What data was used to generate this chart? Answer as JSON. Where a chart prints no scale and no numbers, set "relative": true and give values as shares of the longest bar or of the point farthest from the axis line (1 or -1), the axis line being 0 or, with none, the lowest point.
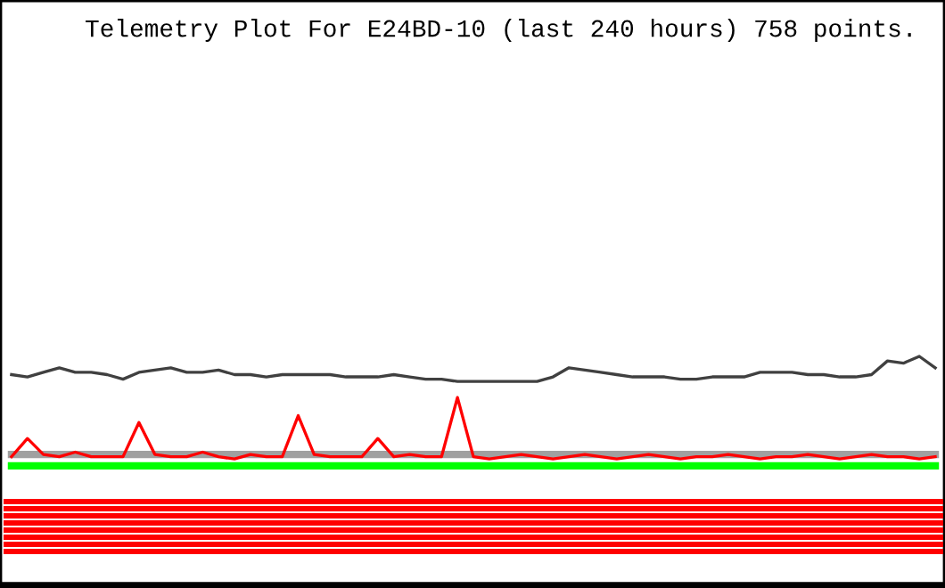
{
  "chart_data": {
    "type": "line",
    "title": "Telemetry Plot For E24BD-10 (last 240 hours) 758 points.",
    "relative": true,
    "tick_labels": false,
    "marker": "none",
    "categories": [
      null,
      null,
      null,
      null,
      null,
      null,
      null,
      null,
      null,
      null,
      null,
      null,
      null,
      null,
      null,
      null,
      null,
      null,
      null,
      null,
      null,
      null,
      null,
      null,
      null,
      null,
      null,
      null,
      null,
      null,
      null,
      null,
      null,
      null,
      null,
      null,
      null,
      null,
      null,
      null,
      null,
      null,
      null,
      null,
      null,
      null,
      null,
      null,
      null,
      null,
      null,
      null,
      null,
      null,
      null,
      null,
      null,
      null,
      null
    ],
    "series": [
      {
        "color": "#404040",
        "values": [
          0.92,
          0.91,
          0.93,
          0.95,
          0.93,
          0.93,
          0.92,
          0.9,
          0.93,
          0.94,
          0.95,
          0.93,
          0.93,
          0.94,
          0.92,
          0.92,
          0.91,
          0.92,
          0.92,
          0.92,
          0.92,
          0.91,
          0.91,
          0.91,
          0.92,
          0.91,
          0.9,
          0.9,
          0.89,
          0.89,
          0.89,
          0.89,
          0.89,
          0.89,
          0.91,
          0.95,
          0.94,
          0.93,
          0.92,
          0.91,
          0.91,
          0.91,
          0.9,
          0.9,
          0.91,
          0.91,
          0.91,
          0.93,
          0.93,
          0.93,
          0.92,
          0.92,
          0.91,
          0.91,
          0.92,
          0.98,
          0.97,
          1.0,
          0.95
        ]
      },
      {
        "color": "#ff0000",
        "values": [
          0.56,
          0.64,
          0.57,
          0.56,
          0.58,
          0.56,
          0.56,
          0.56,
          0.71,
          0.57,
          0.56,
          0.56,
          0.58,
          0.56,
          0.55,
          0.57,
          0.56,
          0.56,
          0.74,
          0.57,
          0.56,
          0.56,
          0.56,
          0.64,
          0.56,
          0.57,
          0.56,
          0.56,
          0.82,
          0.56,
          0.55,
          0.56,
          0.57,
          0.56,
          0.55,
          0.56,
          0.57,
          0.56,
          0.55,
          0.56,
          0.57,
          0.56,
          0.55,
          0.56,
          0.56,
          0.57,
          0.56,
          0.55,
          0.56,
          0.56,
          0.57,
          0.56,
          0.55,
          0.56,
          0.57,
          0.56,
          0.56,
          0.55,
          0.56
        ]
      },
      {
        "type": "line",
        "marker": "none",
        "color": "#a0a0a0",
        "values": [
          0.57,
          0.57,
          0.57,
          0.57,
          0.57,
          0.57,
          0.57,
          0.57,
          0.57,
          0.57,
          0.57,
          0.57,
          0.57,
          0.57,
          0.57,
          0.57,
          0.57,
          0.57,
          0.57,
          0.57,
          0.57,
          0.57,
          0.57,
          0.57,
          0.57,
          0.57,
          0.57,
          0.57,
          0.57,
          0.57,
          0.57,
          0.57,
          0.57,
          0.57,
          0.57,
          0.57,
          0.57,
          0.57,
          0.57,
          0.57,
          0.57,
          0.57,
          0.57,
          0.57,
          0.57,
          0.57,
          0.57,
          0.57,
          0.57,
          0.57,
          0.57,
          0.57,
          0.57,
          0.57,
          0.57,
          0.57,
          0.57,
          0.57,
          0.57
        ]
      },
      {
        "type": "line",
        "marker": "none",
        "color": "#00ff00",
        "values": [
          0.52,
          0.52,
          0.52,
          0.52,
          0.52,
          0.52,
          0.52,
          0.52,
          0.52,
          0.52,
          0.52,
          0.52,
          0.52,
          0.52,
          0.52,
          0.52,
          0.52,
          0.52,
          0.52,
          0.52,
          0.52,
          0.52,
          0.52,
          0.52,
          0.52,
          0.52,
          0.52,
          0.52,
          0.52,
          0.52,
          0.52,
          0.52,
          0.52,
          0.52,
          0.52,
          0.52,
          0.52,
          0.52,
          0.52,
          0.52,
          0.52,
          0.52,
          0.52,
          0.52,
          0.52,
          0.52,
          0.52,
          0.52,
          0.52,
          0.52,
          0.52,
          0.52,
          0.52,
          0.52,
          0.52,
          0.52,
          0.52,
          0.52,
          0.52
        ]
      }
    ]
  }
}
